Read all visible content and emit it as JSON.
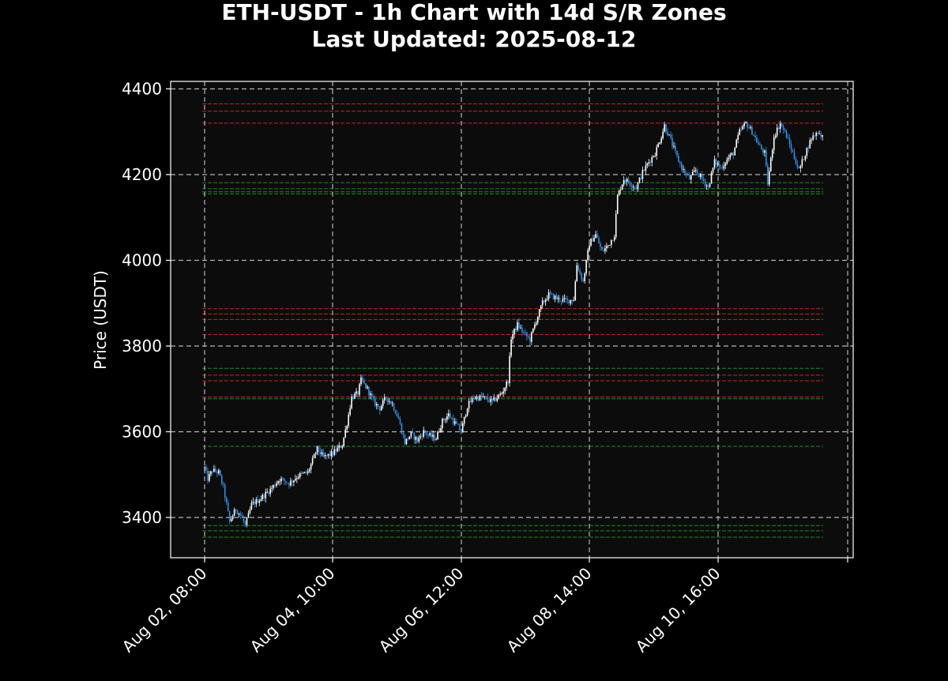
{
  "chart_data": {
    "type": "candlestick",
    "title": "ETH-USDT - 1h Chart with 14d S/R Zones",
    "subtitle": "Last Updated: 2025-08-12",
    "xlabel": "",
    "ylabel": "Price (USDT)",
    "ylim": [
      3300,
      4420
    ],
    "y_ticks": [
      3400,
      3600,
      3800,
      4000,
      4200,
      4400
    ],
    "x_ticks": [
      "Aug 02, 08:00",
      "Aug 04, 10:00",
      "Aug 06, 12:00",
      "Aug 08, 14:00",
      "Aug 10, 16:00"
    ],
    "grid": true,
    "colors": {
      "background": "#000000",
      "plot_background": "#0c0c0c",
      "up_candle": "#ffffff",
      "down_candle": "#2e8fe6",
      "resistance": "#cc2222",
      "support": "#1e8a1e",
      "grid": "#b4b4b4"
    },
    "resistance_levels": [
      4365,
      4348,
      4320,
      3887,
      3875,
      3862,
      3827,
      3732,
      3719,
      3681
    ],
    "support_levels": [
      4181,
      4167,
      4160,
      4155,
      3748,
      3677,
      3566,
      3381,
      3369,
      3354
    ],
    "close_path": [
      [
        0,
        3515
      ],
      [
        2,
        3490
      ],
      [
        5,
        3510
      ],
      [
        9,
        3505
      ],
      [
        12,
        3470
      ],
      [
        16,
        3390
      ],
      [
        20,
        3420
      ],
      [
        24,
        3400
      ],
      [
        26,
        3380
      ],
      [
        30,
        3430
      ],
      [
        36,
        3445
      ],
      [
        42,
        3465
      ],
      [
        48,
        3490
      ],
      [
        54,
        3480
      ],
      [
        60,
        3498
      ],
      [
        66,
        3505
      ],
      [
        72,
        3560
      ],
      [
        76,
        3540
      ],
      [
        82,
        3550
      ],
      [
        88,
        3570
      ],
      [
        91,
        3620
      ],
      [
        94,
        3680
      ],
      [
        98,
        3690
      ],
      [
        100,
        3720
      ],
      [
        104,
        3700
      ],
      [
        108,
        3670
      ],
      [
        112,
        3655
      ],
      [
        116,
        3680
      ],
      [
        120,
        3665
      ],
      [
        124,
        3630
      ],
      [
        128,
        3575
      ],
      [
        132,
        3595
      ],
      [
        136,
        3580
      ],
      [
        140,
        3600
      ],
      [
        144,
        3590
      ],
      [
        148,
        3585
      ],
      [
        152,
        3625
      ],
      [
        156,
        3640
      ],
      [
        160,
        3620
      ],
      [
        164,
        3600
      ],
      [
        168,
        3660
      ],
      [
        172,
        3680
      ],
      [
        178,
        3680
      ],
      [
        184,
        3670
      ],
      [
        190,
        3690
      ],
      [
        194,
        3720
      ],
      [
        196,
        3820
      ],
      [
        200,
        3850
      ],
      [
        204,
        3830
      ],
      [
        208,
        3815
      ],
      [
        212,
        3860
      ],
      [
        216,
        3900
      ],
      [
        220,
        3920
      ],
      [
        226,
        3910
      ],
      [
        232,
        3905
      ],
      [
        236,
        3910
      ],
      [
        238,
        3990
      ],
      [
        242,
        3950
      ],
      [
        246,
        4040
      ],
      [
        250,
        4060
      ],
      [
        254,
        4020
      ],
      [
        258,
        4035
      ],
      [
        262,
        4060
      ],
      [
        264,
        4150
      ],
      [
        268,
        4190
      ],
      [
        272,
        4180
      ],
      [
        276,
        4170
      ],
      [
        280,
        4205
      ],
      [
        284,
        4230
      ],
      [
        288,
        4250
      ],
      [
        292,
        4290
      ],
      [
        294,
        4315
      ],
      [
        298,
        4280
      ],
      [
        302,
        4240
      ],
      [
        306,
        4210
      ],
      [
        310,
        4190
      ],
      [
        314,
        4210
      ],
      [
        318,
        4190
      ],
      [
        322,
        4170
      ],
      [
        326,
        4230
      ],
      [
        330,
        4215
      ],
      [
        334,
        4235
      ],
      [
        338,
        4250
      ],
      [
        342,
        4300
      ],
      [
        346,
        4320
      ],
      [
        350,
        4300
      ],
      [
        354,
        4270
      ],
      [
        358,
        4250
      ],
      [
        360,
        4180
      ],
      [
        364,
        4290
      ],
      [
        368,
        4320
      ],
      [
        372,
        4290
      ],
      [
        376,
        4250
      ],
      [
        380,
        4210
      ],
      [
        384,
        4250
      ],
      [
        388,
        4285
      ],
      [
        392,
        4300
      ],
      [
        395,
        4290
      ]
    ]
  }
}
